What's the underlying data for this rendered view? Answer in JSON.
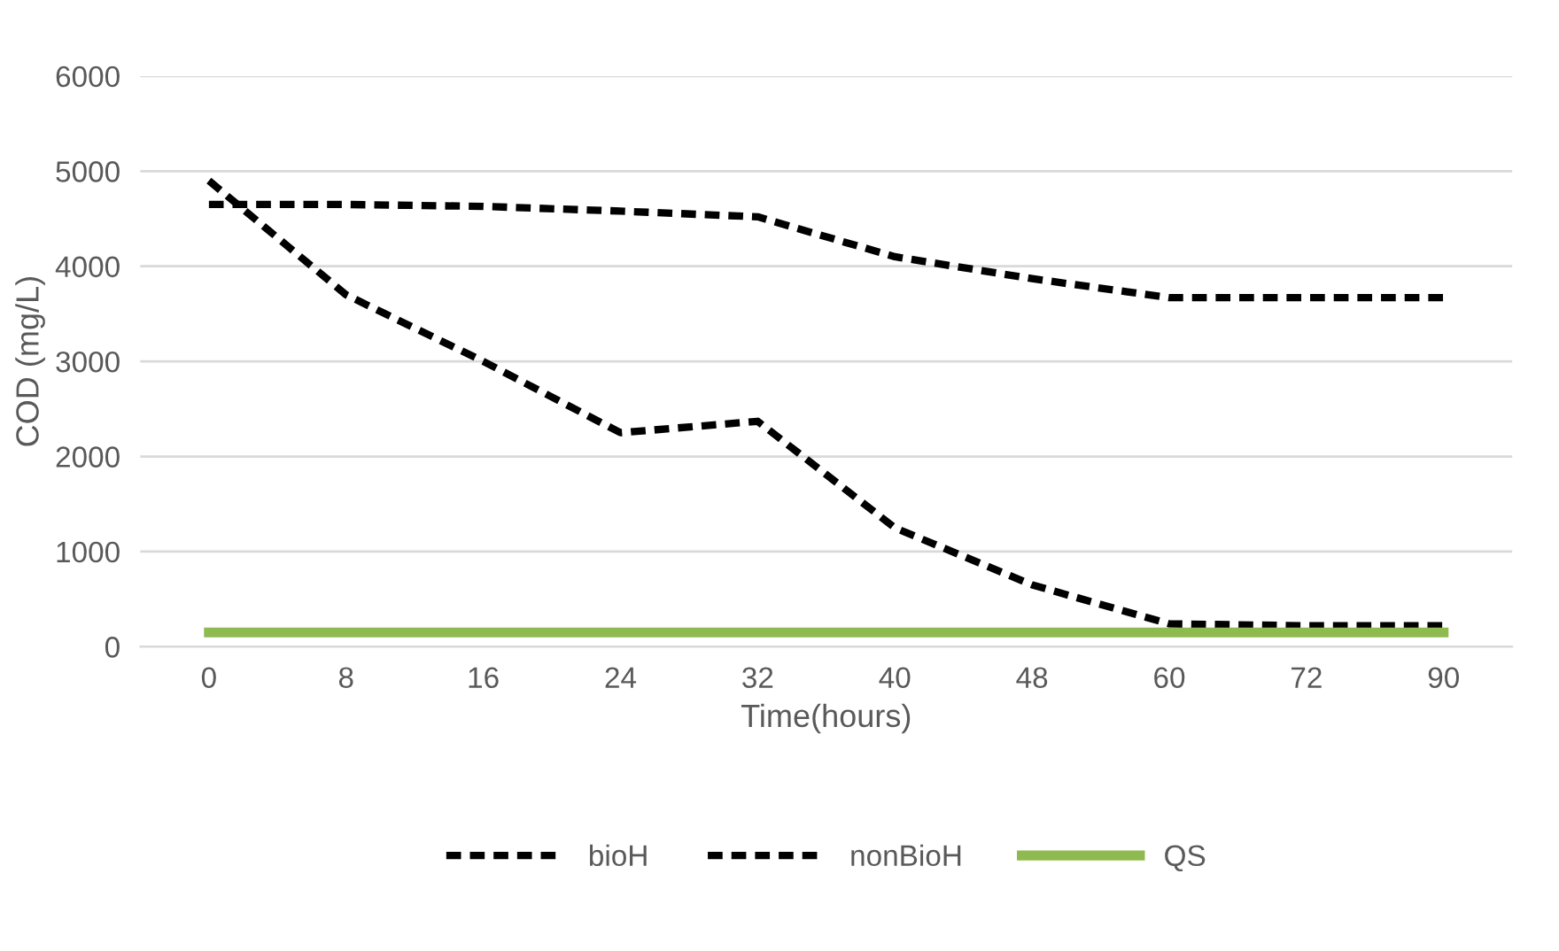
{
  "chart_data": {
    "type": "line",
    "xlabel": "Time(hours)",
    "ylabel": "COD (mg/L)",
    "categories": [
      "0",
      "8",
      "16",
      "24",
      "32",
      "40",
      "48",
      "60",
      "72",
      "90"
    ],
    "series": [
      {
        "name": "bioH",
        "color": "#000000",
        "line_style": "dashed",
        "values": [
          4900,
          3700,
          3000,
          2250,
          2370,
          1250,
          650,
          240,
          220,
          220
        ]
      },
      {
        "name": "nonBioH",
        "color": "#000000",
        "line_style": "dashed",
        "values": [
          4650,
          4650,
          4630,
          4580,
          4520,
          4100,
          3870,
          3670,
          3670,
          3670
        ]
      },
      {
        "name": "QS",
        "color": "#8fba4f",
        "line_style": "solid",
        "values": [
          150,
          150,
          150,
          150,
          150,
          150,
          150,
          150,
          150,
          150
        ]
      }
    ],
    "ylim": [
      0,
      6000
    ],
    "yticks": [
      0,
      1000,
      2000,
      3000,
      4000,
      5000,
      6000
    ],
    "grid": "y",
    "legend": "bottom",
    "marker": "none"
  }
}
